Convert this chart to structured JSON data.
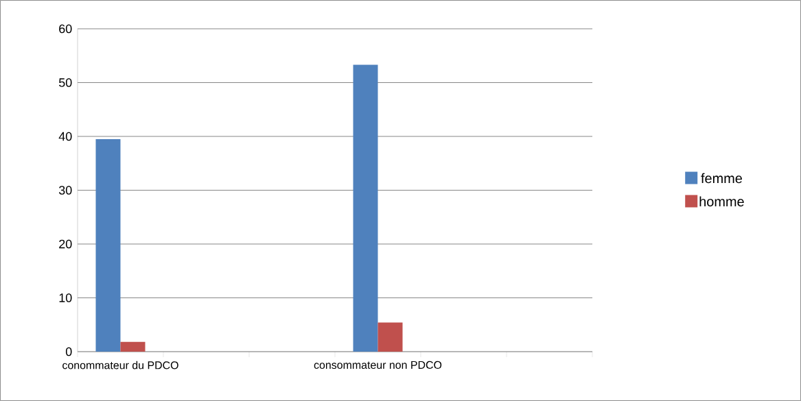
{
  "chart_data": {
    "type": "bar",
    "categories": [
      "conommateur du PDCO",
      null,
      null,
      "consommateur non PDCO",
      null,
      null
    ],
    "series": [
      {
        "name": "femme",
        "color": "#4f81bd",
        "values": [
          39.5,
          null,
          null,
          53.3,
          null,
          null
        ]
      },
      {
        "name": "homme",
        "color": "#c0504d",
        "values": [
          1.8,
          null,
          null,
          5.4,
          null,
          null
        ]
      }
    ],
    "ylim": [
      0,
      60
    ],
    "yticks": [
      0,
      10,
      20,
      30,
      40,
      50,
      60
    ],
    "grid": "y",
    "legend": "right"
  }
}
